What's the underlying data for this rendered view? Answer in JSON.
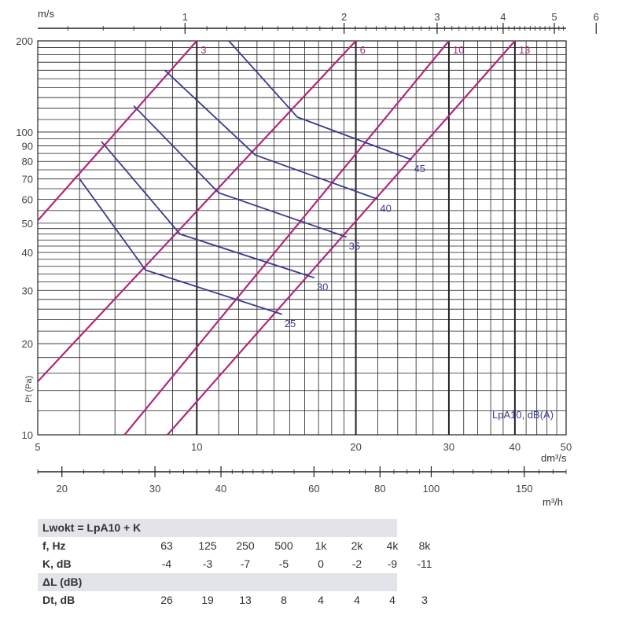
{
  "chart_data": {
    "type": "line",
    "x_axis": {
      "label": "dm³/s",
      "scale": "log",
      "range": [
        5,
        50
      ],
      "ticks": [
        "5",
        "10",
        "20",
        "30",
        "40",
        "50"
      ]
    },
    "y_axis": {
      "label": "Pt (Pa)",
      "scale": "log",
      "range": [
        10,
        200
      ],
      "ticks": [
        "10",
        "20",
        "30",
        "40",
        "50",
        "60",
        "70",
        "80",
        "90",
        "100",
        "200"
      ]
    },
    "top_axis": {
      "label": "m/s",
      "ticks": [
        {
          "label": "1",
          "value_dm3s": 9.5
        },
        {
          "label": "2",
          "value_dm3s": 19.0
        },
        {
          "label": "3",
          "value_dm3s": 28.5
        },
        {
          "label": "4",
          "value_dm3s": 38.0
        },
        {
          "label": "5",
          "value_dm3s": 47.5
        },
        {
          "label": "6",
          "value_dm3s": 57.0
        }
      ]
    },
    "bottom_axis": {
      "label": "m³/h",
      "ticks": [
        {
          "label": "20",
          "value_m3h": 20
        },
        {
          "label": "30",
          "value_m3h": 30
        },
        {
          "label": "40",
          "value_m3h": 40
        },
        {
          "label": "60",
          "value_m3h": 60
        },
        {
          "label": "80",
          "value_m3h": 80
        },
        {
          "label": "100",
          "value_m3h": 100
        },
        {
          "label": "150",
          "value_m3h": 150
        }
      ]
    },
    "grid": true,
    "legend_label": "LpA10, dB(A)",
    "legend_placement": "bottom-right",
    "setting_lines": [
      {
        "name": "3",
        "points": [
          [
            5,
            51
          ],
          [
            10,
            200
          ]
        ]
      },
      {
        "name": "6",
        "points": [
          [
            5,
            15
          ],
          [
            20,
            200
          ]
        ]
      },
      {
        "name": "10",
        "points": [
          [
            7.3,
            10
          ],
          [
            30,
            200
          ]
        ]
      },
      {
        "name": "13",
        "points": [
          [
            8.8,
            10
          ],
          [
            40,
            200
          ]
        ]
      }
    ],
    "noise_lines": [
      {
        "name": "25",
        "points": [
          [
            6.0,
            70
          ],
          [
            8.0,
            35
          ],
          [
            14.5,
            25
          ]
        ]
      },
      {
        "name": "30",
        "points": [
          [
            6.6,
            93
          ],
          [
            9.3,
            46
          ],
          [
            16.7,
            33
          ]
        ]
      },
      {
        "name": "35",
        "points": [
          [
            7.6,
            122
          ],
          [
            11.0,
            63
          ],
          [
            19.2,
            45
          ]
        ]
      },
      {
        "name": "40",
        "points": [
          [
            8.7,
            160
          ],
          [
            12.9,
            84
          ],
          [
            22.0,
            60
          ]
        ]
      },
      {
        "name": "45",
        "points": [
          [
            11.5,
            200
          ],
          [
            15.5,
            112
          ],
          [
            25.5,
            81
          ]
        ]
      }
    ]
  },
  "table": {
    "header1": "Lwokt = LpA10 + K",
    "freq_label": "f, Hz",
    "freqs": [
      "63",
      "125",
      "250",
      "500",
      "1k",
      "2k",
      "4k",
      "8k"
    ],
    "k_label": "K, dB",
    "k_values": [
      "-4",
      "-3",
      "-7",
      "-5",
      "0",
      "-2",
      "-9",
      "-11"
    ],
    "header2": "ΔL (dB)",
    "dt_label": "Dt, dB",
    "dt_values": [
      "26",
      "19",
      "13",
      "8",
      "4",
      "4",
      "4",
      "3"
    ]
  },
  "colors": {
    "setting_line": "#b0287a",
    "noise_line": "#3c3c8e",
    "grid": "#222222",
    "table_header": "#e2e4ea"
  }
}
